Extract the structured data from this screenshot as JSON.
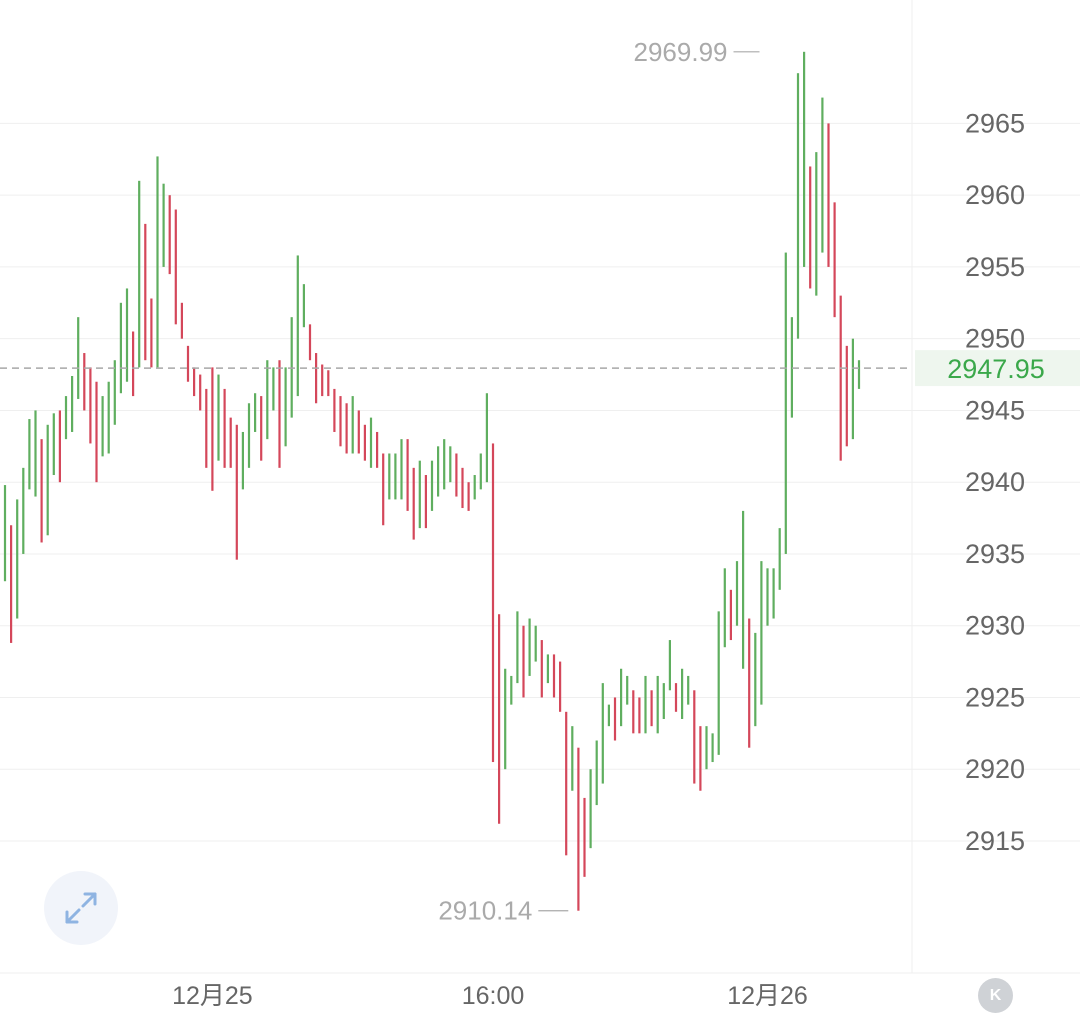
{
  "chart_data": {
    "type": "ohlc",
    "ylim": [
      2905.8,
      2973.6
    ],
    "y_ticks": [
      "2965",
      "2960",
      "2955",
      "2950",
      "2945",
      "2940",
      "2935",
      "2930",
      "2925",
      "2920",
      "2915"
    ],
    "x_ticks": [
      {
        "label": "12月25",
        "bar": 34
      },
      {
        "label": "16:00",
        "bar": 80
      },
      {
        "label": "12月26",
        "bar": 125
      }
    ],
    "current_price": "2947.95",
    "annotations": {
      "high": {
        "label": "2969.99",
        "bar": 125
      },
      "low": {
        "label": "2910.14",
        "bar": 93
      }
    },
    "bars": [
      [
        2939.8,
        2933.1
      ],
      [
        2937.0,
        2928.8
      ],
      [
        2938.8,
        2930.5
      ],
      [
        2941.0,
        2935.0
      ],
      [
        2944.4,
        2939.5
      ],
      [
        2945.0,
        2939.0
      ],
      [
        2943.0,
        2935.8
      ],
      [
        2944.0,
        2936.3
      ],
      [
        2944.8,
        2940.5
      ],
      [
        2945.0,
        2940.0
      ],
      [
        2946.0,
        2943.0
      ],
      [
        2947.4,
        2943.5
      ],
      [
        2951.5,
        2945.8
      ],
      [
        2949.0,
        2945.0
      ],
      [
        2948.0,
        2942.7
      ],
      [
        2947.0,
        2940.0
      ],
      [
        2946.0,
        2941.8
      ],
      [
        2947.0,
        2942.0
      ],
      [
        2948.5,
        2944.0
      ],
      [
        2952.5,
        2946.2
      ],
      [
        2953.5,
        2947.0
      ],
      [
        2950.5,
        2946.0
      ],
      [
        2961.0,
        2948.0
      ],
      [
        2958.0,
        2948.5
      ],
      [
        2952.8,
        2948.0
      ],
      [
        2962.7,
        2948.0
      ],
      [
        2960.8,
        2955.0
      ],
      [
        2960.0,
        2954.5
      ],
      [
        2959.0,
        2951.0
      ],
      [
        2952.5,
        2950.0
      ],
      [
        2949.5,
        2947.0
      ],
      [
        2948.0,
        2946.0
      ],
      [
        2947.5,
        2945.0
      ],
      [
        2946.5,
        2941.0
      ],
      [
        2948.0,
        2939.4
      ],
      [
        2947.5,
        2941.5
      ],
      [
        2946.5,
        2941.0
      ],
      [
        2944.5,
        2941.0
      ],
      [
        2944.0,
        2934.6
      ],
      [
        2943.5,
        2939.5
      ],
      [
        2945.5,
        2941.0
      ],
      [
        2946.2,
        2943.5
      ],
      [
        2946.0,
        2941.5
      ],
      [
        2948.5,
        2943.0
      ],
      [
        2948.0,
        2945.0
      ],
      [
        2948.5,
        2941.0
      ],
      [
        2948.0,
        2942.5
      ],
      [
        2951.5,
        2944.5
      ],
      [
        2955.8,
        2946.0
      ],
      [
        2953.8,
        2950.8
      ],
      [
        2951.0,
        2948.5
      ],
      [
        2949.0,
        2945.5
      ],
      [
        2948.2,
        2946.0
      ],
      [
        2947.8,
        2946.0
      ],
      [
        2946.5,
        2943.5
      ],
      [
        2946.0,
        2942.5
      ],
      [
        2945.5,
        2942.0
      ],
      [
        2946.0,
        2942.0
      ],
      [
        2945.0,
        2942.0
      ],
      [
        2944.0,
        2941.5
      ],
      [
        2944.5,
        2941.0
      ],
      [
        2943.5,
        2941.0
      ],
      [
        2942.0,
        2937.0
      ],
      [
        2942.0,
        2938.8
      ],
      [
        2942.0,
        2938.8
      ],
      [
        2943.0,
        2938.8
      ],
      [
        2943.0,
        2938.0
      ],
      [
        2941.0,
        2936.0
      ],
      [
        2941.5,
        2936.8
      ],
      [
        2940.5,
        2936.8
      ],
      [
        2941.5,
        2938.0
      ],
      [
        2942.5,
        2939.0
      ],
      [
        2943.0,
        2939.5
      ],
      [
        2942.5,
        2940.0
      ],
      [
        2942.0,
        2939.0
      ],
      [
        2941.0,
        2938.2
      ],
      [
        2940.0,
        2938.0
      ],
      [
        2940.5,
        2938.8
      ],
      [
        2942.0,
        2939.5
      ],
      [
        2946.2,
        2940.0
      ],
      [
        2942.7,
        2920.5
      ],
      [
        2930.8,
        2916.2
      ],
      [
        2927.0,
        2920.0
      ],
      [
        2926.5,
        2924.5
      ],
      [
        2931.0,
        2926.0
      ],
      [
        2930.0,
        2925.0
      ],
      [
        2930.5,
        2926.5
      ],
      [
        2930.0,
        2927.5
      ],
      [
        2929.0,
        2925.0
      ],
      [
        2928.0,
        2926.0
      ],
      [
        2928.0,
        2925.0
      ],
      [
        2927.5,
        2924.0
      ],
      [
        2924.0,
        2914.0
      ],
      [
        2923.0,
        2918.5
      ],
      [
        2921.5,
        2910.14
      ],
      [
        2918.0,
        2912.5
      ],
      [
        2920.0,
        2914.5
      ],
      [
        2922.0,
        2917.5
      ],
      [
        2926.0,
        2919.0
      ],
      [
        2924.5,
        2923.0
      ],
      [
        2925.0,
        2922.0
      ],
      [
        2927.0,
        2923.0
      ],
      [
        2926.5,
        2924.5
      ],
      [
        2925.5,
        2922.5
      ],
      [
        2925.0,
        2922.5
      ],
      [
        2926.5,
        2922.5
      ],
      [
        2925.5,
        2923.0
      ],
      [
        2926.5,
        2922.5
      ],
      [
        2926.0,
        2923.5
      ],
      [
        2929.0,
        2925.5
      ],
      [
        2926.0,
        2924.0
      ],
      [
        2927.0,
        2923.5
      ],
      [
        2926.5,
        2924.5
      ],
      [
        2925.5,
        2919.0
      ],
      [
        2923.0,
        2918.5
      ],
      [
        2923.0,
        2920.0
      ],
      [
        2922.5,
        2920.5
      ],
      [
        2931.0,
        2921.0
      ],
      [
        2934.0,
        2928.5
      ],
      [
        2932.5,
        2929.0
      ],
      [
        2934.5,
        2930.0
      ],
      [
        2938.0,
        2927.0
      ],
      [
        2930.5,
        2921.5
      ],
      [
        2929.5,
        2923.0
      ],
      [
        2934.5,
        2924.5
      ],
      [
        2934.0,
        2930.0
      ],
      [
        2934.0,
        2930.5
      ],
      [
        2936.8,
        2932.5
      ],
      [
        2956.0,
        2935.0
      ],
      [
        2951.5,
        2944.5
      ],
      [
        2968.5,
        2950.0
      ],
      [
        2969.99,
        2955.0
      ],
      [
        2962.0,
        2953.5
      ],
      [
        2963.0,
        2953.0
      ],
      [
        2966.8,
        2956.0
      ],
      [
        2965.0,
        2955.0
      ],
      [
        2959.5,
        2951.5
      ],
      [
        2953.0,
        2941.5
      ],
      [
        2949.5,
        2942.5
      ],
      [
        2950.0,
        2943.0
      ],
      [
        2948.5,
        2946.5
      ]
    ],
    "colors": {
      "up": "#5fae5f",
      "down": "#d4475a",
      "current": "#3aa84a",
      "grid": "#efefef",
      "dashed": "#a8a8a8",
      "axis_text": "#666666",
      "annotation": "#aaaaaa",
      "expand_icon": "#8fb4e2"
    }
  },
  "controls": {
    "expand_icon": "expand-arrows-icon",
    "k_button_label": "K"
  }
}
